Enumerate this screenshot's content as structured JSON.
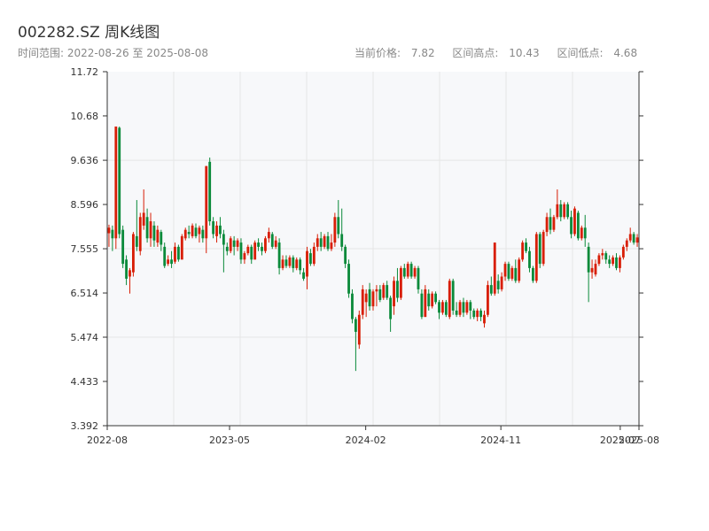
{
  "header": {
    "title": "002282.SZ 周K线图",
    "range_label": "时间范围:",
    "range_start": "2022-08-26",
    "range_sep": "至",
    "range_end": "2025-08-08",
    "current_label": "当前价格:",
    "current_value": "7.82",
    "high_label": "区间高点:",
    "high_value": "10.43",
    "low_label": "区间低点:",
    "low_value": "4.68"
  },
  "colors": {
    "up": "#d81e06",
    "down": "#0b8a3a",
    "grid": "#e6e6e6",
    "plot_bg": "#f7f8fa",
    "axis": "#333333"
  },
  "chart_data": {
    "type": "candlestick",
    "ylim": [
      3.392,
      11.72
    ],
    "y_ticks": [
      "3.392",
      "4.433",
      "5.474",
      "6.514",
      "7.555",
      "8.596",
      "9.636",
      "10.68",
      "11.72"
    ],
    "x_ticks": [
      "2022-08",
      "2023-05",
      "2024-02",
      "2024-11",
      "2025-07",
      "2025-08"
    ],
    "x_start": "2022-08-26",
    "x_end": "2025-08-08",
    "candles": [
      {
        "o": 7.92,
        "c": 8.05,
        "h": 8.12,
        "l": 7.6
      },
      {
        "o": 8.0,
        "c": 7.8,
        "h": 8.1,
        "l": 7.5
      },
      {
        "o": 7.8,
        "c": 10.43,
        "h": 10.43,
        "l": 7.55
      },
      {
        "o": 10.4,
        "c": 7.9,
        "h": 10.43,
        "l": 7.8
      },
      {
        "o": 8.0,
        "c": 7.2,
        "h": 8.1,
        "l": 7.1
      },
      {
        "o": 7.3,
        "c": 6.85,
        "h": 7.4,
        "l": 6.7
      },
      {
        "o": 6.9,
        "c": 7.05,
        "h": 7.1,
        "l": 6.5
      },
      {
        "o": 7.0,
        "c": 7.9,
        "h": 7.95,
        "l": 6.9
      },
      {
        "o": 7.85,
        "c": 7.6,
        "h": 8.7,
        "l": 7.5
      },
      {
        "o": 7.5,
        "c": 8.3,
        "h": 8.4,
        "l": 7.4
      },
      {
        "o": 8.1,
        "c": 8.4,
        "h": 8.95,
        "l": 8.0
      },
      {
        "o": 8.3,
        "c": 7.8,
        "h": 8.5,
        "l": 7.7
      },
      {
        "o": 7.8,
        "c": 8.2,
        "h": 8.4,
        "l": 7.6
      },
      {
        "o": 8.1,
        "c": 7.75,
        "h": 8.2,
        "l": 7.6
      },
      {
        "o": 7.7,
        "c": 8.0,
        "h": 8.1,
        "l": 7.6
      },
      {
        "o": 7.95,
        "c": 7.65,
        "h": 8.0,
        "l": 7.5
      },
      {
        "o": 7.6,
        "c": 7.15,
        "h": 7.7,
        "l": 7.1
      },
      {
        "o": 7.2,
        "c": 7.3,
        "h": 7.4,
        "l": 7.15
      },
      {
        "o": 7.3,
        "c": 7.2,
        "h": 7.5,
        "l": 7.1
      },
      {
        "o": 7.25,
        "c": 7.6,
        "h": 7.7,
        "l": 7.2
      },
      {
        "o": 7.6,
        "c": 7.3,
        "h": 7.65,
        "l": 7.25
      },
      {
        "o": 7.3,
        "c": 7.85,
        "h": 7.9,
        "l": 7.3
      },
      {
        "o": 7.8,
        "c": 8.0,
        "h": 8.05,
        "l": 7.75
      },
      {
        "o": 7.95,
        "c": 7.9,
        "h": 8.1,
        "l": 7.8
      },
      {
        "o": 7.85,
        "c": 8.1,
        "h": 8.15,
        "l": 7.8
      },
      {
        "o": 8.05,
        "c": 7.85,
        "h": 8.15,
        "l": 7.8
      },
      {
        "o": 7.9,
        "c": 8.05,
        "h": 8.1,
        "l": 7.7
      },
      {
        "o": 8.0,
        "c": 7.8,
        "h": 8.1,
        "l": 7.7
      },
      {
        "o": 7.8,
        "c": 9.5,
        "h": 9.5,
        "l": 7.45
      },
      {
        "o": 9.6,
        "c": 8.2,
        "h": 9.7,
        "l": 8.1
      },
      {
        "o": 8.2,
        "c": 7.9,
        "h": 8.3,
        "l": 7.8
      },
      {
        "o": 7.85,
        "c": 8.1,
        "h": 8.2,
        "l": 7.7
      },
      {
        "o": 8.1,
        "c": 7.9,
        "h": 8.3,
        "l": 7.8
      },
      {
        "o": 7.9,
        "c": 7.65,
        "h": 8.0,
        "l": 7.0
      },
      {
        "o": 7.6,
        "c": 7.5,
        "h": 7.7,
        "l": 7.4
      },
      {
        "o": 7.5,
        "c": 7.8,
        "h": 7.85,
        "l": 7.45
      },
      {
        "o": 7.75,
        "c": 7.6,
        "h": 7.85,
        "l": 7.4
      },
      {
        "o": 7.6,
        "c": 7.75,
        "h": 7.8,
        "l": 7.5
      },
      {
        "o": 7.7,
        "c": 7.3,
        "h": 7.8,
        "l": 7.2
      },
      {
        "o": 7.3,
        "c": 7.45,
        "h": 7.5,
        "l": 7.2
      },
      {
        "o": 7.45,
        "c": 7.6,
        "h": 7.65,
        "l": 7.4
      },
      {
        "o": 7.6,
        "c": 7.3,
        "h": 7.65,
        "l": 7.2
      },
      {
        "o": 7.3,
        "c": 7.7,
        "h": 7.75,
        "l": 7.3
      },
      {
        "o": 7.7,
        "c": 7.6,
        "h": 7.8,
        "l": 7.5
      },
      {
        "o": 7.6,
        "c": 7.5,
        "h": 7.7,
        "l": 7.4
      },
      {
        "o": 7.5,
        "c": 7.8,
        "h": 7.85,
        "l": 7.45
      },
      {
        "o": 7.8,
        "c": 7.95,
        "h": 8.05,
        "l": 7.7
      },
      {
        "o": 7.9,
        "c": 7.6,
        "h": 7.95,
        "l": 7.55
      },
      {
        "o": 7.6,
        "c": 7.75,
        "h": 7.85,
        "l": 7.55
      },
      {
        "o": 7.7,
        "c": 7.1,
        "h": 7.8,
        "l": 6.95
      },
      {
        "o": 7.1,
        "c": 7.3,
        "h": 7.4,
        "l": 7.05
      },
      {
        "o": 7.3,
        "c": 7.15,
        "h": 7.4,
        "l": 7.1
      },
      {
        "o": 7.15,
        "c": 7.35,
        "h": 7.4,
        "l": 7.1
      },
      {
        "o": 7.35,
        "c": 7.1,
        "h": 7.4,
        "l": 7.0
      },
      {
        "o": 7.1,
        "c": 7.3,
        "h": 7.35,
        "l": 7.05
      },
      {
        "o": 7.3,
        "c": 7.05,
        "h": 7.35,
        "l": 6.95
      },
      {
        "o": 7.0,
        "c": 6.85,
        "h": 7.1,
        "l": 6.8
      },
      {
        "o": 6.9,
        "c": 7.5,
        "h": 7.6,
        "l": 6.6
      },
      {
        "o": 7.45,
        "c": 7.2,
        "h": 7.55,
        "l": 7.15
      },
      {
        "o": 7.2,
        "c": 7.6,
        "h": 7.7,
        "l": 7.15
      },
      {
        "o": 7.6,
        "c": 7.8,
        "h": 7.9,
        "l": 7.5
      },
      {
        "o": 7.8,
        "c": 7.6,
        "h": 7.95,
        "l": 7.5
      },
      {
        "o": 7.6,
        "c": 7.85,
        "h": 7.9,
        "l": 7.55
      },
      {
        "o": 7.85,
        "c": 7.55,
        "h": 7.95,
        "l": 7.5
      },
      {
        "o": 7.55,
        "c": 7.7,
        "h": 7.9,
        "l": 7.5
      },
      {
        "o": 7.7,
        "c": 8.3,
        "h": 8.4,
        "l": 7.6
      },
      {
        "o": 8.3,
        "c": 7.9,
        "h": 8.7,
        "l": 7.8
      },
      {
        "o": 7.9,
        "c": 7.6,
        "h": 8.5,
        "l": 7.5
      },
      {
        "o": 7.6,
        "c": 7.2,
        "h": 7.65,
        "l": 7.1
      },
      {
        "o": 7.2,
        "c": 6.5,
        "h": 7.3,
        "l": 6.4
      },
      {
        "o": 6.5,
        "c": 5.9,
        "h": 6.6,
        "l": 5.8
      },
      {
        "o": 5.9,
        "c": 5.6,
        "h": 5.95,
        "l": 4.68
      },
      {
        "o": 5.3,
        "c": 6.0,
        "h": 6.1,
        "l": 5.2
      },
      {
        "o": 6.0,
        "c": 6.6,
        "h": 6.7,
        "l": 5.9
      },
      {
        "o": 6.3,
        "c": 6.5,
        "h": 6.6,
        "l": 5.95
      },
      {
        "o": 6.6,
        "c": 6.2,
        "h": 6.75,
        "l": 6.1
      },
      {
        "o": 6.2,
        "c": 6.55,
        "h": 6.6,
        "l": 6.1
      },
      {
        "o": 6.55,
        "c": 6.6,
        "h": 6.7,
        "l": 6.2
      },
      {
        "o": 6.6,
        "c": 6.35,
        "h": 6.7,
        "l": 6.3
      },
      {
        "o": 6.4,
        "c": 6.7,
        "h": 6.75,
        "l": 6.35
      },
      {
        "o": 6.7,
        "c": 6.4,
        "h": 6.8,
        "l": 6.35
      },
      {
        "o": 6.4,
        "c": 5.9,
        "h": 6.45,
        "l": 5.6
      },
      {
        "o": 6.2,
        "c": 6.8,
        "h": 6.9,
        "l": 6.0
      },
      {
        "o": 6.8,
        "c": 6.4,
        "h": 7.1,
        "l": 6.3
      },
      {
        "o": 6.4,
        "c": 7.1,
        "h": 7.15,
        "l": 6.35
      },
      {
        "o": 7.1,
        "c": 6.9,
        "h": 7.2,
        "l": 6.85
      },
      {
        "o": 6.9,
        "c": 7.2,
        "h": 7.25,
        "l": 6.85
      },
      {
        "o": 7.2,
        "c": 6.9,
        "h": 7.25,
        "l": 6.85
      },
      {
        "o": 6.9,
        "c": 7.1,
        "h": 7.15,
        "l": 6.85
      },
      {
        "o": 7.1,
        "c": 6.6,
        "h": 7.15,
        "l": 6.5
      },
      {
        "o": 6.5,
        "c": 5.95,
        "h": 6.6,
        "l": 5.9
      },
      {
        "o": 5.95,
        "c": 6.6,
        "h": 6.7,
        "l": 5.95
      },
      {
        "o": 6.5,
        "c": 6.2,
        "h": 6.6,
        "l": 6.1
      },
      {
        "o": 6.2,
        "c": 6.5,
        "h": 6.55,
        "l": 6.15
      },
      {
        "o": 6.5,
        "c": 6.3,
        "h": 6.55,
        "l": 6.25
      },
      {
        "o": 6.3,
        "c": 6.05,
        "h": 6.35,
        "l": 5.9
      },
      {
        "o": 6.05,
        "c": 6.3,
        "h": 6.35,
        "l": 6.0
      },
      {
        "o": 6.3,
        "c": 6.0,
        "h": 6.35,
        "l": 5.95
      },
      {
        "o": 5.95,
        "c": 6.8,
        "h": 6.85,
        "l": 5.9
      },
      {
        "o": 6.8,
        "c": 6.1,
        "h": 6.85,
        "l": 6.0
      },
      {
        "o": 6.1,
        "c": 6.0,
        "h": 6.3,
        "l": 5.95
      },
      {
        "o": 6.0,
        "c": 6.3,
        "h": 6.35,
        "l": 5.95
      },
      {
        "o": 6.3,
        "c": 6.05,
        "h": 6.4,
        "l": 5.95
      },
      {
        "o": 6.05,
        "c": 6.3,
        "h": 6.35,
        "l": 6.0
      },
      {
        "o": 6.3,
        "c": 6.1,
        "h": 6.35,
        "l": 5.9
      },
      {
        "o": 6.1,
        "c": 5.95,
        "h": 6.15,
        "l": 5.9
      },
      {
        "o": 5.95,
        "c": 6.1,
        "h": 6.15,
        "l": 5.85
      },
      {
        "o": 6.1,
        "c": 5.95,
        "h": 6.15,
        "l": 5.85
      },
      {
        "o": 5.8,
        "c": 6.0,
        "h": 6.1,
        "l": 5.7
      },
      {
        "o": 6.0,
        "c": 6.7,
        "h": 6.8,
        "l": 5.95
      },
      {
        "o": 6.7,
        "c": 6.5,
        "h": 6.9,
        "l": 6.45
      },
      {
        "o": 6.5,
        "c": 7.7,
        "h": 7.7,
        "l": 6.45
      },
      {
        "o": 6.8,
        "c": 6.6,
        "h": 6.95,
        "l": 6.5
      },
      {
        "o": 6.6,
        "c": 6.9,
        "h": 7.0,
        "l": 6.55
      },
      {
        "o": 6.9,
        "c": 7.2,
        "h": 7.25,
        "l": 6.8
      },
      {
        "o": 7.2,
        "c": 6.85,
        "h": 7.25,
        "l": 6.8
      },
      {
        "o": 6.85,
        "c": 7.1,
        "h": 7.15,
        "l": 6.8
      },
      {
        "o": 7.1,
        "c": 6.8,
        "h": 7.3,
        "l": 6.75
      },
      {
        "o": 6.8,
        "c": 7.3,
        "h": 7.35,
        "l": 6.75
      },
      {
        "o": 7.3,
        "c": 7.7,
        "h": 7.75,
        "l": 7.25
      },
      {
        "o": 7.7,
        "c": 7.5,
        "h": 7.8,
        "l": 7.45
      },
      {
        "o": 7.5,
        "c": 7.1,
        "h": 7.6,
        "l": 7.0
      },
      {
        "o": 7.1,
        "c": 6.8,
        "h": 7.15,
        "l": 6.75
      },
      {
        "o": 6.8,
        "c": 7.9,
        "h": 7.95,
        "l": 6.75
      },
      {
        "o": 7.9,
        "c": 7.2,
        "h": 7.95,
        "l": 7.1
      },
      {
        "o": 7.2,
        "c": 7.95,
        "h": 8.0,
        "l": 7.15
      },
      {
        "o": 7.95,
        "c": 8.3,
        "h": 8.4,
        "l": 7.85
      },
      {
        "o": 8.3,
        "c": 8.0,
        "h": 8.5,
        "l": 7.9
      },
      {
        "o": 8.0,
        "c": 8.3,
        "h": 8.35,
        "l": 7.95
      },
      {
        "o": 8.3,
        "c": 8.6,
        "h": 8.95,
        "l": 8.25
      },
      {
        "o": 8.6,
        "c": 8.3,
        "h": 8.7,
        "l": 8.2
      },
      {
        "o": 8.3,
        "c": 8.6,
        "h": 8.65,
        "l": 8.25
      },
      {
        "o": 8.6,
        "c": 8.3,
        "h": 8.65,
        "l": 8.25
      },
      {
        "o": 8.3,
        "c": 7.9,
        "h": 8.45,
        "l": 7.8
      },
      {
        "o": 7.9,
        "c": 8.5,
        "h": 8.55,
        "l": 7.85
      },
      {
        "o": 8.4,
        "c": 7.8,
        "h": 8.45,
        "l": 7.75
      },
      {
        "o": 7.8,
        "c": 8.05,
        "h": 8.1,
        "l": 7.75
      },
      {
        "o": 8.05,
        "c": 7.8,
        "h": 8.35,
        "l": 7.6
      },
      {
        "o": 7.6,
        "c": 7.0,
        "h": 7.7,
        "l": 6.3
      },
      {
        "o": 7.0,
        "c": 7.1,
        "h": 7.3,
        "l": 6.85
      },
      {
        "o": 6.95,
        "c": 7.2,
        "h": 7.3,
        "l": 6.9
      },
      {
        "o": 7.2,
        "c": 7.4,
        "h": 7.45,
        "l": 7.15
      },
      {
        "o": 7.4,
        "c": 7.45,
        "h": 7.55,
        "l": 7.3
      },
      {
        "o": 7.45,
        "c": 7.3,
        "h": 7.5,
        "l": 7.2
      },
      {
        "o": 7.3,
        "c": 7.2,
        "h": 7.4,
        "l": 7.1
      },
      {
        "o": 7.2,
        "c": 7.35,
        "h": 7.4,
        "l": 7.15
      },
      {
        "o": 7.35,
        "c": 7.1,
        "h": 7.45,
        "l": 7.05
      },
      {
        "o": 7.1,
        "c": 7.35,
        "h": 7.4,
        "l": 7.0
      },
      {
        "o": 7.35,
        "c": 7.6,
        "h": 7.65,
        "l": 7.3
      },
      {
        "o": 7.6,
        "c": 7.75,
        "h": 7.8,
        "l": 7.5
      },
      {
        "o": 7.75,
        "c": 7.9,
        "h": 8.05,
        "l": 7.7
      },
      {
        "o": 7.9,
        "c": 7.7,
        "h": 7.95,
        "l": 7.65
      },
      {
        "o": 7.7,
        "c": 7.82,
        "h": 7.9,
        "l": 7.6
      }
    ]
  }
}
